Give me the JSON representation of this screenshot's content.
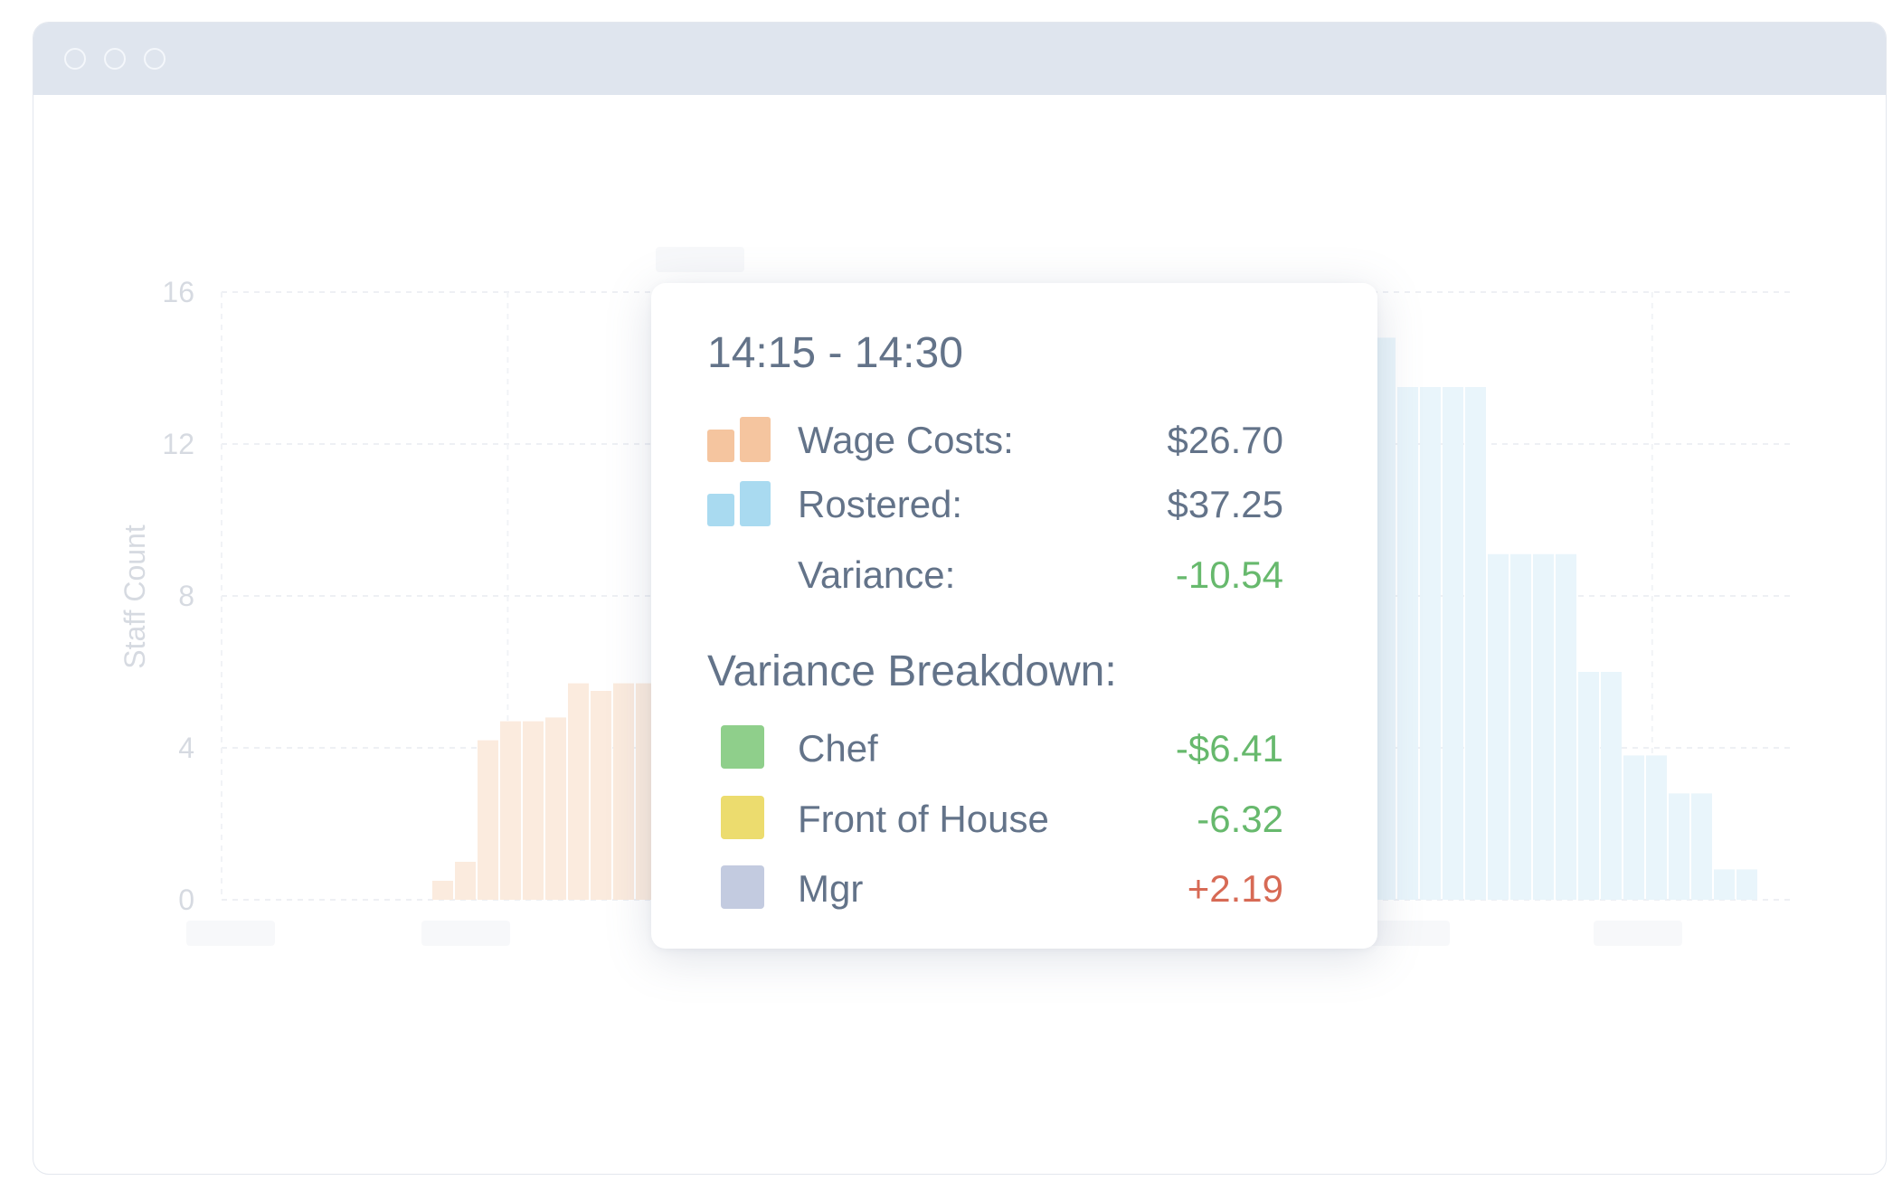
{
  "window": {
    "controls": [
      "close",
      "minimize",
      "maximize"
    ]
  },
  "chart_data": {
    "type": "bar",
    "ylabel": "Staff Count",
    "yticks": [
      "16",
      "12",
      "8",
      "4",
      "0"
    ],
    "ylim": [
      0,
      16
    ],
    "grid": true,
    "series": [
      {
        "color": "#f5c59f",
        "values": [
          0.5,
          1.0,
          4.2,
          4.7,
          4.7,
          4.8,
          5.7,
          5.5,
          5.7,
          5.7
        ]
      },
      {
        "color": "#bfe3f5",
        "values": [
          14.8,
          13.5,
          13.5,
          13.5,
          13.5,
          9.1,
          9.1,
          9.1,
          9.1,
          6.0,
          6.0,
          3.8,
          3.8,
          2.8,
          2.8,
          0.8,
          0.8
        ]
      }
    ]
  },
  "tooltip": {
    "title": "14:15 - 14:30",
    "wage_costs": {
      "label": "Wage Costs:",
      "value": "$26.70",
      "color": "#f5c59f"
    },
    "rostered": {
      "label": "Rostered:",
      "value": "$37.25",
      "color": "#a9daf0"
    },
    "variance": {
      "label": "Variance:",
      "value": "-10.54"
    },
    "breakdown_title": "Variance Breakdown:",
    "breakdown": [
      {
        "label": "Chef",
        "value": "-$6.41",
        "color": "#8fcf8b",
        "trend": "down"
      },
      {
        "label": "Front of House",
        "value": "-6.32",
        "color": "#ecdc6e",
        "trend": "down"
      },
      {
        "label": "Mgr",
        "value": "+2.19",
        "color": "#c3cbe0",
        "trend": "up"
      }
    ]
  }
}
